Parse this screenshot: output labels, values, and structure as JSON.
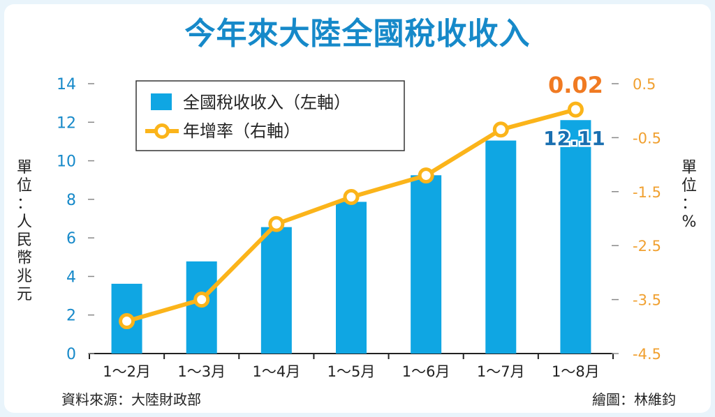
{
  "title": "今年來大陸全國稅收收入",
  "unit_left": "單位：人民幣兆元",
  "unit_right": "單位：%",
  "source": "資料來源：大陸財政部",
  "credit": "繪圖：林維鈞",
  "colors": {
    "bar": "#0fa6e3",
    "line": "#fbb41a",
    "title": "#1689c9",
    "right_axis": "#f0a030",
    "highlight": "#f07a22"
  },
  "chart_data": {
    "type": "bar",
    "categories": [
      "1～2月",
      "1～3月",
      "1～4月",
      "1～5月",
      "1～6月",
      "1～7月",
      "1～8月"
    ],
    "series": [
      {
        "name": "全國稅收收入（左軸）",
        "type": "bar",
        "axis": "left",
        "values": [
          3.62,
          4.78,
          6.56,
          7.87,
          9.25,
          11.05,
          12.11
        ]
      },
      {
        "name": "年增率（右軸）",
        "type": "line",
        "axis": "right",
        "values": [
          -3.9,
          -3.5,
          -2.1,
          -1.6,
          -1.2,
          -0.35,
          0.02
        ]
      }
    ],
    "ylim_left": [
      0,
      14
    ],
    "yticks_left": [
      "0",
      "2",
      "4",
      "6",
      "8",
      "10",
      "12",
      "14"
    ],
    "ylim_right": [
      -4.5,
      0.5
    ],
    "yticks_right": [
      "-4.5",
      "-3.5",
      "-2.5",
      "-1.5",
      "-0.5",
      "0.5"
    ],
    "data_labels": {
      "bar_last": "12.11",
      "line_last": "0.02"
    },
    "legend": "top-left",
    "grid": false
  }
}
